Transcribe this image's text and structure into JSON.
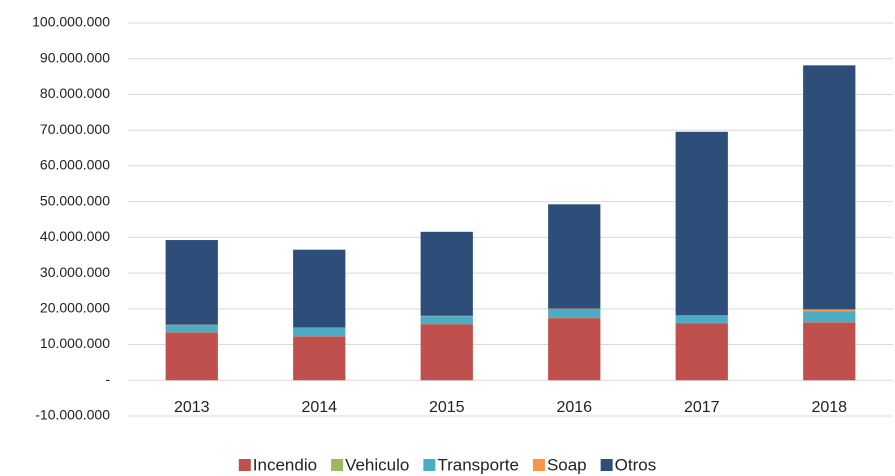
{
  "chart_data": {
    "type": "stacked_bar",
    "categories": [
      "2013",
      "2014",
      "2015",
      "2016",
      "2017",
      "2018"
    ],
    "series": [
      {
        "name": "Incendio",
        "color": "#c0504d",
        "values": [
          13400000,
          12300000,
          15700000,
          17400000,
          16000000,
          16200000
        ]
      },
      {
        "name": "Vehiculo",
        "color": "#9bbb59",
        "values": [
          50000,
          50000,
          50000,
          50000,
          50000,
          50000
        ]
      },
      {
        "name": "Transporte",
        "color": "#4bacc6",
        "values": [
          2000000,
          2300000,
          2200000,
          2500000,
          2000000,
          3000000
        ]
      },
      {
        "name": "Soap",
        "color": "#f79646",
        "values": [
          100000,
          100000,
          100000,
          100000,
          100000,
          600000
        ]
      },
      {
        "name": "Otros",
        "color": "#2e4e7a",
        "values": [
          23700000,
          21800000,
          23500000,
          29200000,
          51400000,
          68300000
        ]
      }
    ],
    "ylim": [
      -10000000,
      100000000
    ],
    "yticks": [
      {
        "value": -10000000,
        "label": "-10.000.000"
      },
      {
        "value": 0,
        "label": "-"
      },
      {
        "value": 10000000,
        "label": "10.000.000"
      },
      {
        "value": 20000000,
        "label": "20.000.000"
      },
      {
        "value": 30000000,
        "label": "30.000.000"
      },
      {
        "value": 40000000,
        "label": "40.000.000"
      },
      {
        "value": 50000000,
        "label": "50.000.000"
      },
      {
        "value": 60000000,
        "label": "60.000.000"
      },
      {
        "value": 70000000,
        "label": "70.000.000"
      },
      {
        "value": 80000000,
        "label": "80.000.000"
      },
      {
        "value": 90000000,
        "label": "90.000.000"
      },
      {
        "value": 100000000,
        "label": "100.000.000"
      }
    ],
    "grid": true,
    "legend": "bottom"
  }
}
